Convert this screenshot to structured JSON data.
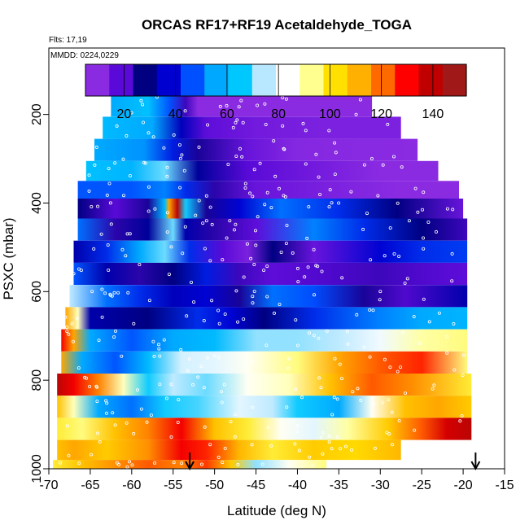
{
  "chart_data": {
    "type": "heatmap",
    "title": "ORCAS RF17+RF19 Acetaldehyde_TOGA",
    "annotations": [
      "Flts: 17,19",
      "MMDD: 0224,0229"
    ],
    "xlabel": "Latitude (deg N)",
    "ylabel": "PSXC (mbar)",
    "xlim": [
      -70,
      -15
    ],
    "ylim": [
      1000,
      50
    ],
    "y_reversed": true,
    "x_ticks": [
      -70,
      -65,
      -60,
      -55,
      -50,
      -45,
      -40,
      -35,
      -30,
      -25,
      -20,
      -15
    ],
    "y_ticks": [
      200,
      400,
      600,
      800,
      1000
    ],
    "colorbar": {
      "range": [
        5,
        153
      ],
      "ticks": [
        20,
        40,
        60,
        80,
        100,
        120,
        140
      ],
      "placement": "top",
      "colors": [
        "#8a2be2",
        "#5a0ad8",
        "#000080",
        "#0000d0",
        "#0050ff",
        "#00a8ff",
        "#00c8ff",
        "#b8e8ff",
        "#ffffff",
        "#ffff90",
        "#ffe000",
        "#ffb000",
        "#ff6a00",
        "#ff0000",
        "#c00000",
        "#a01818"
      ]
    },
    "arrows_latitude": [
      -53,
      -18.5
    ],
    "bands": [
      {
        "p": 180,
        "lat_min": -62.5,
        "lat_max": -31,
        "stops": [
          [
            -62.5,
            55
          ],
          [
            -58,
            62
          ],
          [
            -55.5,
            45
          ],
          [
            -53.5,
            18
          ],
          [
            -52,
            5
          ],
          [
            -31,
            5
          ]
        ]
      },
      {
        "p": 230,
        "lat_min": -63.5,
        "lat_max": -27.5,
        "stops": [
          [
            -63.5,
            60
          ],
          [
            -57.5,
            55
          ],
          [
            -54,
            32
          ],
          [
            -51,
            14
          ],
          [
            -45,
            10
          ],
          [
            -37,
            8
          ],
          [
            -27.5,
            8
          ]
        ]
      },
      {
        "p": 280,
        "lat_min": -64.5,
        "lat_max": -25.5,
        "stops": [
          [
            -64.5,
            55
          ],
          [
            -58.5,
            52
          ],
          [
            -55,
            38
          ],
          [
            -52,
            22
          ],
          [
            -46,
            12
          ],
          [
            -40,
            6
          ],
          [
            -25.5,
            5
          ]
        ]
      },
      {
        "p": 330,
        "lat_min": -65.5,
        "lat_max": -23,
        "stops": [
          [
            -65.5,
            62
          ],
          [
            -60,
            58
          ],
          [
            -56,
            70
          ],
          [
            -52,
            28
          ],
          [
            -46,
            15
          ],
          [
            -38,
            10
          ],
          [
            -30,
            5
          ],
          [
            -23,
            5
          ]
        ]
      },
      {
        "p": 370,
        "lat_min": -66.5,
        "lat_max": -20.5,
        "stops": [
          [
            -66.5,
            45
          ],
          [
            -60,
            45
          ],
          [
            -56,
            50
          ],
          [
            -53.5,
            40
          ],
          [
            -50,
            20
          ],
          [
            -45,
            12
          ],
          [
            -36,
            8
          ],
          [
            -28,
            5
          ],
          [
            -20.5,
            5
          ]
        ]
      },
      {
        "p": 410,
        "lat_min": -66.5,
        "lat_max": -20,
        "stops": [
          [
            -66.5,
            25
          ],
          [
            -62,
            15
          ],
          [
            -58,
            22
          ],
          [
            -56,
            60
          ],
          [
            -55.5,
            115
          ],
          [
            -54.5,
            145
          ],
          [
            -53.5,
            65
          ],
          [
            -51,
            22
          ],
          [
            -47,
            35
          ],
          [
            -42,
            48
          ],
          [
            -35,
            40
          ],
          [
            -28,
            25
          ],
          [
            -20,
            12
          ]
        ]
      },
      {
        "p": 460,
        "lat_min": -66.5,
        "lat_max": -19.5,
        "stops": [
          [
            -66.5,
            48
          ],
          [
            -62,
            20
          ],
          [
            -58,
            28
          ],
          [
            -55,
            70
          ],
          [
            -53.5,
            30
          ],
          [
            -50,
            20
          ],
          [
            -45,
            14
          ],
          [
            -38,
            50
          ],
          [
            -32,
            40
          ],
          [
            -25,
            25
          ],
          [
            -19.5,
            18
          ]
        ]
      },
      {
        "p": 510,
        "lat_min": -67,
        "lat_max": -19.5,
        "stops": [
          [
            -67,
            30
          ],
          [
            -63,
            40
          ],
          [
            -59,
            55
          ],
          [
            -56,
            70
          ],
          [
            -53,
            40
          ],
          [
            -49,
            15
          ],
          [
            -46,
            8
          ],
          [
            -43,
            25
          ],
          [
            -38,
            12
          ],
          [
            -30,
            35
          ],
          [
            -25,
            40
          ],
          [
            -19.5,
            42
          ]
        ]
      },
      {
        "p": 560,
        "lat_min": -67,
        "lat_max": -19.5,
        "stops": [
          [
            -67,
            45
          ],
          [
            -63,
            30
          ],
          [
            -59,
            20
          ],
          [
            -55,
            25
          ],
          [
            -51,
            38
          ],
          [
            -47,
            18
          ],
          [
            -43,
            14
          ],
          [
            -37,
            16
          ],
          [
            -30,
            18
          ],
          [
            -25,
            16
          ],
          [
            -19.5,
            14
          ]
        ]
      },
      {
        "p": 610,
        "lat_min": -67.5,
        "lat_max": -19.5,
        "stops": [
          [
            -67.5,
            75
          ],
          [
            -63,
            48
          ],
          [
            -59,
            40
          ],
          [
            -55,
            32
          ],
          [
            -51,
            35
          ],
          [
            -47,
            22
          ],
          [
            -43,
            48
          ],
          [
            -38,
            44
          ],
          [
            -32,
            22
          ],
          [
            -27,
            16
          ],
          [
            -19.5,
            30
          ]
        ]
      },
      {
        "p": 660,
        "lat_min": -68,
        "lat_max": -19.5,
        "stops": [
          [
            -68,
            115
          ],
          [
            -66.5,
            90
          ],
          [
            -65,
            30
          ],
          [
            -58,
            25
          ],
          [
            -52,
            40
          ],
          [
            -48,
            35
          ],
          [
            -44,
            25
          ],
          [
            -38,
            40
          ],
          [
            -30,
            50
          ],
          [
            -25,
            55
          ],
          [
            -19.5,
            58
          ]
        ]
      },
      {
        "p": 710,
        "lat_min": -68.5,
        "lat_max": -19.5,
        "stops": [
          [
            -68.5,
            135
          ],
          [
            -67,
            115
          ],
          [
            -65,
            55
          ],
          [
            -60,
            45
          ],
          [
            -55,
            55
          ],
          [
            -50,
            60
          ],
          [
            -45,
            72
          ],
          [
            -40,
            72
          ],
          [
            -35,
            75
          ],
          [
            -30,
            82
          ],
          [
            -25,
            92
          ],
          [
            -19.5,
            95
          ]
        ]
      },
      {
        "p": 760,
        "lat_min": -68.5,
        "lat_max": -19.5,
        "stops": [
          [
            -68.5,
            115
          ],
          [
            -66,
            55
          ],
          [
            -62,
            45
          ],
          [
            -58,
            60
          ],
          [
            -54,
            78
          ],
          [
            -50,
            80
          ],
          [
            -46,
            85
          ],
          [
            -40,
            95
          ],
          [
            -35,
            115
          ],
          [
            -30,
            125
          ],
          [
            -25,
            130
          ],
          [
            -19.5,
            95
          ]
        ]
      },
      {
        "p": 810,
        "lat_min": -69,
        "lat_max": -19,
        "stops": [
          [
            -69,
            145
          ],
          [
            -67,
            135
          ],
          [
            -64,
            120
          ],
          [
            -61,
            90
          ],
          [
            -58,
            65
          ],
          [
            -55,
            75
          ],
          [
            -51,
            70
          ],
          [
            -46,
            85
          ],
          [
            -41,
            90
          ],
          [
            -36,
            110
          ],
          [
            -31,
            125
          ],
          [
            -26,
            118
          ],
          [
            -19,
            100
          ]
        ]
      },
      {
        "p": 860,
        "lat_min": -69,
        "lat_max": -19,
        "stops": [
          [
            -69,
            110
          ],
          [
            -67,
            90
          ],
          [
            -64,
            55
          ],
          [
            -60,
            48
          ],
          [
            -56,
            65
          ],
          [
            -52,
            68
          ],
          [
            -47,
            80
          ],
          [
            -43,
            75
          ],
          [
            -40,
            65
          ],
          [
            -35,
            55
          ],
          [
            -31,
            85
          ],
          [
            -27,
            110
          ],
          [
            -23,
            115
          ],
          [
            -19,
            108
          ]
        ]
      },
      {
        "p": 910,
        "lat_min": -69,
        "lat_max": -19,
        "stops": [
          [
            -69,
            100
          ],
          [
            -66,
            95
          ],
          [
            -62,
            110
          ],
          [
            -58,
            120
          ],
          [
            -54,
            135
          ],
          [
            -50,
            110
          ],
          [
            -46,
            100
          ],
          [
            -42,
            85
          ],
          [
            -38,
            80
          ],
          [
            -34,
            92
          ],
          [
            -29,
            108
          ],
          [
            -25,
            125
          ],
          [
            -22,
            140
          ],
          [
            -19,
            145
          ]
        ]
      },
      {
        "p": 960,
        "lat_min": -69,
        "lat_max": -27.5,
        "stops": [
          [
            -69,
            110
          ],
          [
            -67,
            115
          ],
          [
            -63,
            108
          ],
          [
            -58,
            118
          ],
          [
            -54,
            135
          ],
          [
            -51,
            130
          ],
          [
            -47,
            112
          ],
          [
            -43,
            100
          ],
          [
            -38,
            108
          ],
          [
            -33,
            105
          ],
          [
            -27.5,
            112
          ]
        ]
      },
      {
        "p": 1000,
        "lat_min": -69.5,
        "lat_max": -36.5,
        "stops": [
          [
            -69.5,
            100
          ],
          [
            -66,
            110
          ],
          [
            -62,
            118
          ],
          [
            -58,
            125
          ],
          [
            -54,
            120
          ],
          [
            -51,
            128
          ],
          [
            -48,
            108
          ],
          [
            -45,
            72
          ],
          [
            -41,
            85
          ],
          [
            -36.5,
            95
          ]
        ]
      }
    ]
  }
}
